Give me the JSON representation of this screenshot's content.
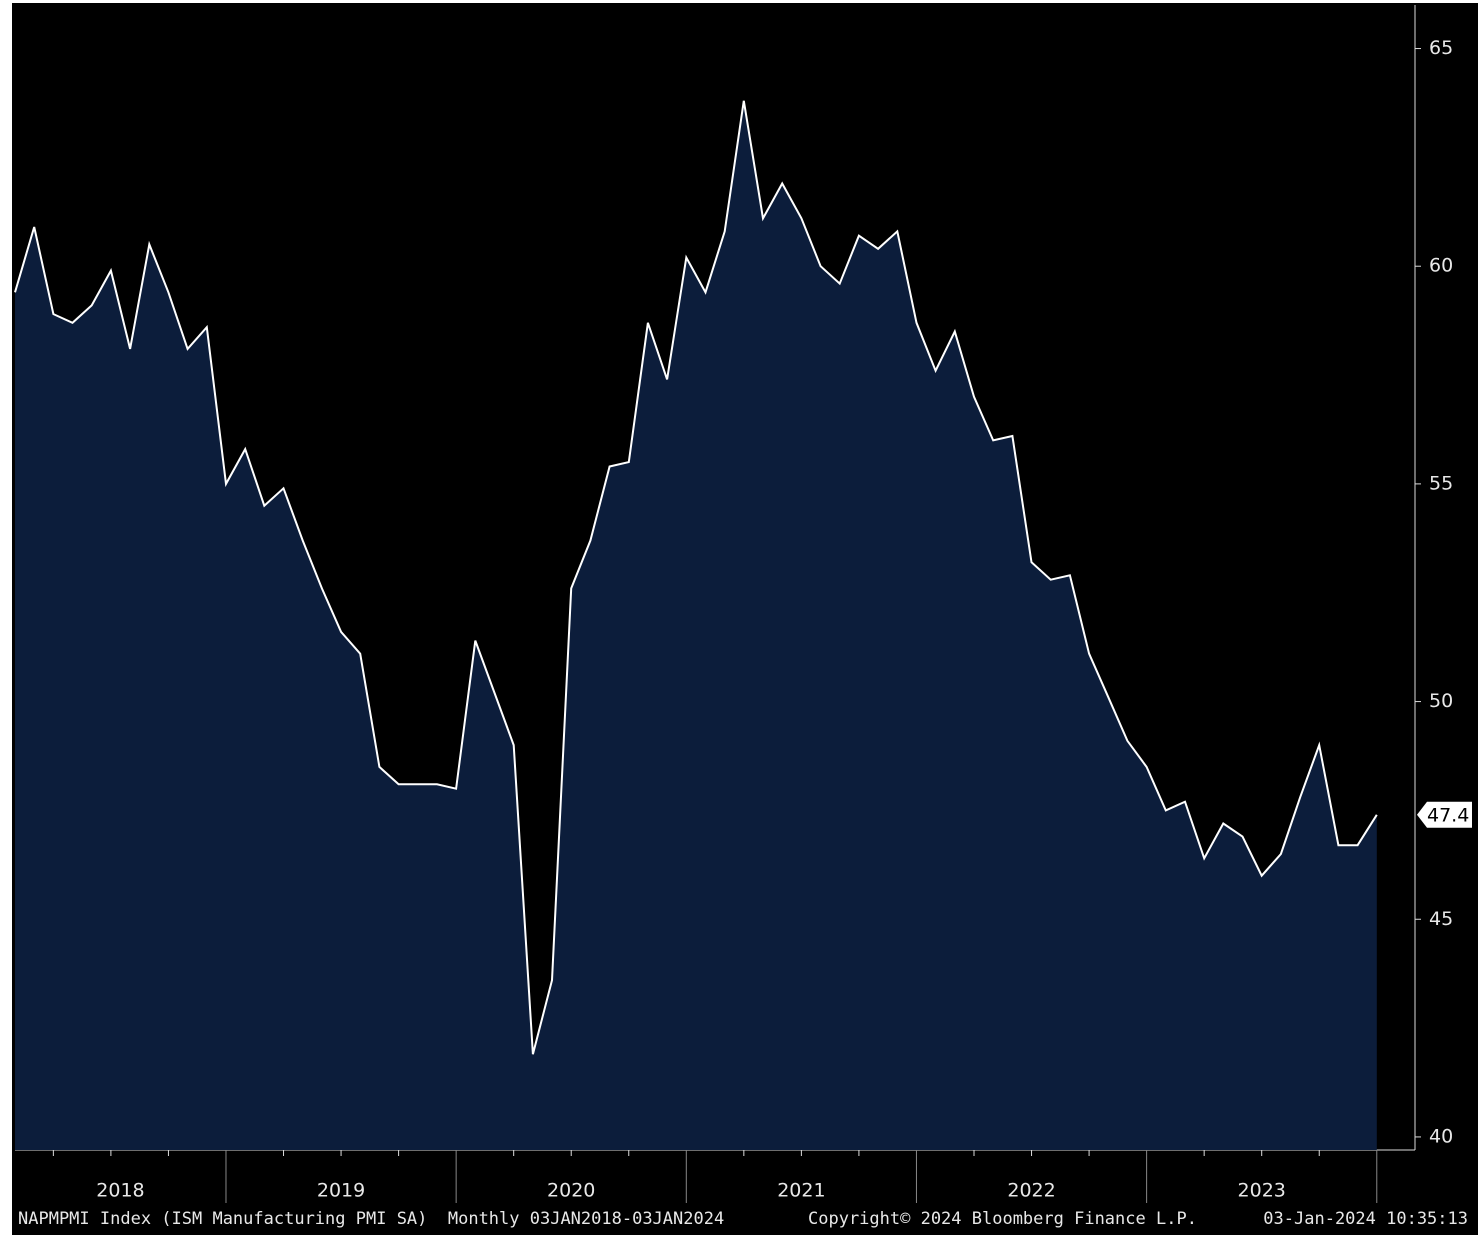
{
  "chart_data": {
    "type": "area",
    "x": [
      "2018-01",
      "2018-02",
      "2018-03",
      "2018-04",
      "2018-05",
      "2018-06",
      "2018-07",
      "2018-08",
      "2018-09",
      "2018-10",
      "2018-11",
      "2018-12",
      "2019-01",
      "2019-02",
      "2019-03",
      "2019-04",
      "2019-05",
      "2019-06",
      "2019-07",
      "2019-08",
      "2019-09",
      "2019-10",
      "2019-11",
      "2019-12",
      "2020-01",
      "2020-02",
      "2020-03",
      "2020-04",
      "2020-05",
      "2020-06",
      "2020-07",
      "2020-08",
      "2020-09",
      "2020-10",
      "2020-11",
      "2020-12",
      "2021-01",
      "2021-02",
      "2021-03",
      "2021-04",
      "2021-05",
      "2021-06",
      "2021-07",
      "2021-08",
      "2021-09",
      "2021-10",
      "2021-11",
      "2021-12",
      "2022-01",
      "2022-02",
      "2022-03",
      "2022-04",
      "2022-05",
      "2022-06",
      "2022-07",
      "2022-08",
      "2022-09",
      "2022-10",
      "2022-11",
      "2022-12",
      "2023-01",
      "2023-02",
      "2023-03",
      "2023-04",
      "2023-05",
      "2023-06",
      "2023-07",
      "2023-08",
      "2023-09",
      "2023-10",
      "2023-11",
      "2023-12"
    ],
    "values": [
      59.4,
      60.9,
      58.9,
      58.7,
      59.1,
      59.9,
      58.1,
      60.5,
      59.4,
      58.1,
      58.6,
      55.0,
      55.8,
      54.5,
      54.9,
      53.7,
      52.6,
      51.6,
      51.1,
      48.5,
      48.1,
      48.1,
      48.1,
      48.0,
      51.4,
      50.2,
      49.0,
      41.9,
      43.6,
      52.6,
      53.7,
      55.4,
      55.5,
      58.7,
      57.4,
      60.2,
      59.4,
      60.8,
      63.8,
      61.1,
      61.9,
      61.1,
      60.0,
      59.6,
      60.7,
      60.4,
      60.8,
      58.7,
      57.6,
      58.5,
      57.0,
      56.0,
      56.1,
      53.2,
      52.8,
      52.9,
      51.1,
      50.1,
      49.1,
      48.5,
      47.5,
      47.7,
      46.4,
      47.2,
      46.9,
      46.0,
      46.5,
      47.8,
      49.0,
      46.7,
      46.7,
      47.4
    ],
    "year_labels": [
      "2018",
      "2019",
      "2020",
      "2021",
      "2022",
      "2023"
    ],
    "ylim": [
      39.7,
      66
    ],
    "yticks": [
      40,
      45,
      50,
      55,
      60,
      65
    ],
    "color": "#0c1d3b",
    "line_color": "#ffffff",
    "footer": [
      "NAPMPMI Index (ISM Manufacturing PMI SA)  Monthly 03JAN2018-03JAN2024",
      "Copyright© 2024 Bloomberg Finance L.P.",
      "03-Jan-2024 10:35:13"
    ]
  }
}
